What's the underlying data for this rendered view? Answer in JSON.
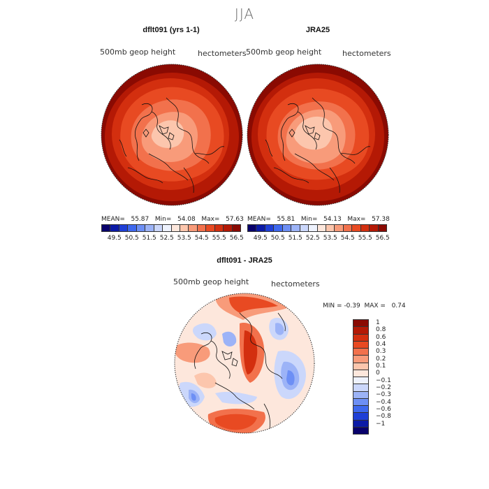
{
  "season": "JJA",
  "panels": [
    {
      "title": "dflt091 (yrs 1-1)",
      "variable": "500mb geop height",
      "units": "hectometers",
      "mean_label": "MEAN=",
      "mean": "55.87",
      "min_label": "Min=",
      "min": "54.08",
      "max_label": "Max=",
      "max": "57.63"
    },
    {
      "title": "JRA25",
      "variable": "500mb geop height",
      "units": "hectometers",
      "mean_label": "MEAN=",
      "mean": "55.81",
      "min_label": "Min=",
      "min": "54.13",
      "max_label": "Max=",
      "max": "57.38"
    }
  ],
  "abs_colorbar": {
    "labels": [
      "49.5",
      "50.5",
      "51.5",
      "52.5",
      "53.5",
      "54.5",
      "55.5",
      "56.5"
    ],
    "colors": [
      "#08006b",
      "#0b1aa6",
      "#1f3fd6",
      "#3e68ee",
      "#6d8ff5",
      "#9cb3f7",
      "#cbd7fb",
      "#eef2fd",
      "#fde7dc",
      "#fcc6ad",
      "#f89b7a",
      "#f2714c",
      "#e84a22",
      "#d32f0f",
      "#b41905",
      "#8a0a02"
    ]
  },
  "diff_panel": {
    "title": "dflt091 - JRA25",
    "variable": "500mb geop height",
    "units": "hectometers",
    "min_label": "MIN =",
    "min": "-0.39",
    "max_label": "MAX =",
    "max": "0.74"
  },
  "diff_colorbar": {
    "labels": [
      "1",
      "0.8",
      "0.6",
      "0.4",
      "0.3",
      "0.2",
      "0.1",
      "0",
      "−0.1",
      "−0.2",
      "−0.3",
      "−0.4",
      "−0.6",
      "−0.8",
      "−1"
    ],
    "colors": [
      "#8a0a02",
      "#b41905",
      "#d32f0f",
      "#e84a22",
      "#f2714c",
      "#f89b7a",
      "#fcc6ad",
      "#fde7dc",
      "#eef2fd",
      "#cbd7fb",
      "#9cb3f7",
      "#6d8ff5",
      "#3e68ee",
      "#1f3fd6",
      "#0b1aa6",
      "#08006b"
    ]
  }
}
